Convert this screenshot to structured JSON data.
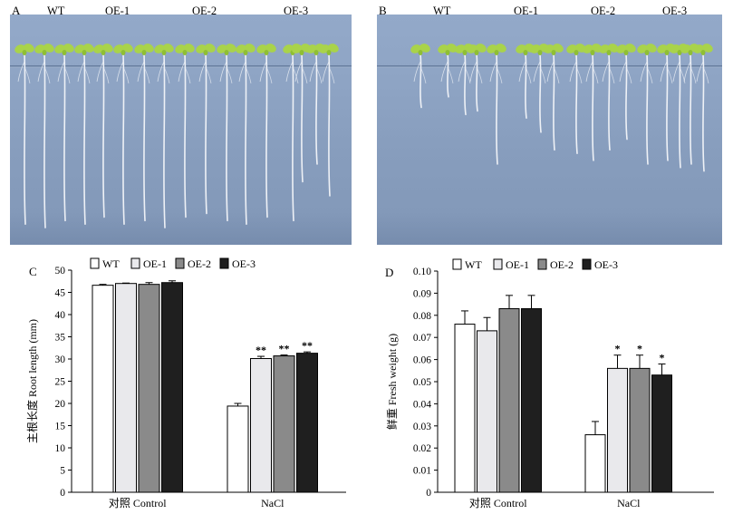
{
  "panelA": {
    "label": "A",
    "groups": [
      "WT",
      "OE-1",
      "OE-2",
      "OE-3"
    ],
    "root_lengths": [
      48,
      49,
      47,
      48,
      46,
      48,
      47,
      49,
      46,
      45,
      47,
      48,
      46,
      47,
      36,
      31,
      40
    ]
  },
  "panelB": {
    "label": "B",
    "groups": [
      "WT",
      "OE-1",
      "OE-2",
      "OE-3"
    ],
    "root_lengths": [
      15,
      12,
      17,
      16,
      31,
      18,
      22,
      27,
      28,
      30,
      27,
      24,
      31,
      30,
      32,
      31,
      33
    ]
  },
  "chart_data": [
    {
      "panel_label": "C",
      "type": "bar",
      "categories": [
        "对照 Control",
        "NaCl"
      ],
      "series": [
        {
          "name": "WT",
          "values": [
            46.6,
            19.4
          ],
          "errors": [
            0.2,
            0.6
          ]
        },
        {
          "name": "OE-1",
          "values": [
            47.0,
            30.1
          ],
          "errors": [
            0.1,
            0.5
          ]
        },
        {
          "name": "OE-2",
          "values": [
            46.8,
            30.7
          ],
          "errors": [
            0.4,
            0.2
          ]
        },
        {
          "name": "OE-3",
          "values": [
            47.2,
            31.3
          ],
          "errors": [
            0.4,
            0.3
          ]
        }
      ],
      "annotations": [
        "",
        "",
        "",
        "",
        "",
        "**",
        "**",
        "**"
      ],
      "ylabel": "主根长度 Root length (mm)",
      "ylim": [
        0,
        50
      ],
      "yticks": [
        0,
        5,
        10,
        15,
        20,
        25,
        30,
        35,
        40,
        45,
        50
      ],
      "legend_position": "top"
    },
    {
      "panel_label": "D",
      "type": "bar",
      "categories": [
        "对照 Control",
        "NaCl"
      ],
      "series": [
        {
          "name": "WT",
          "values": [
            0.076,
            0.026
          ],
          "errors": [
            0.006,
            0.006
          ]
        },
        {
          "name": "OE-1",
          "values": [
            0.073,
            0.056
          ],
          "errors": [
            0.006,
            0.006
          ]
        },
        {
          "name": "OE-2",
          "values": [
            0.083,
            0.056
          ],
          "errors": [
            0.006,
            0.006
          ]
        },
        {
          "name": "OE-3",
          "values": [
            0.083,
            0.053
          ],
          "errors": [
            0.006,
            0.005
          ]
        }
      ],
      "annotations": [
        "",
        "",
        "",
        "",
        "",
        "*",
        "*",
        "*"
      ],
      "ylabel": "鲜重 Fresh weight (g)",
      "ylim": [
        0,
        0.1
      ],
      "yticks": [
        "0",
        "0.01",
        "0.02",
        "0.03",
        "0.04",
        "0.05",
        "0.06",
        "0.07",
        "0.08",
        "0.09",
        "0.10"
      ],
      "legend_position": "top"
    }
  ],
  "colors": {
    "WT": "#ffffff",
    "OE-1": "#e9e9ec",
    "OE-2": "#8a8a8a",
    "OE-3": "#1f1f1f",
    "seedling_leaf": "#a9d34a",
    "root": "#eef1f6"
  }
}
